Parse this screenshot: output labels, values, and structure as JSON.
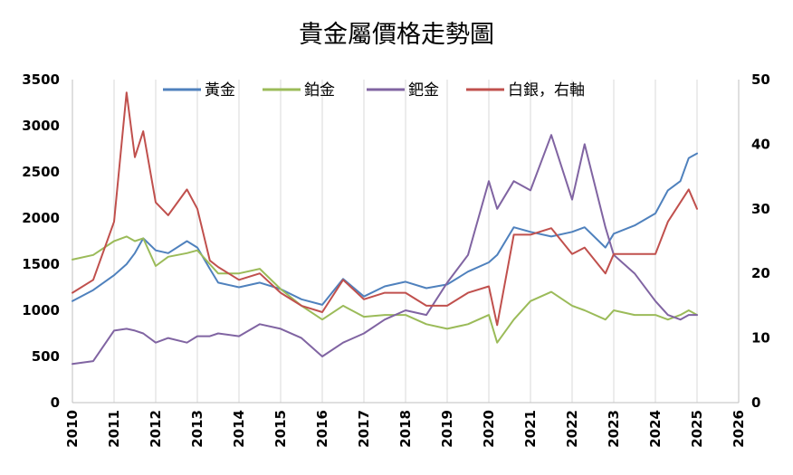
{
  "chart_data": {
    "type": "line",
    "title": "貴金屬價格走勢圖",
    "xlabel": "",
    "ylabel": "",
    "xlim": [
      2010,
      2026
    ],
    "ylim_left": [
      0,
      3500
    ],
    "ylim_right": [
      0,
      50
    ],
    "x_ticks": [
      "2010",
      "2011",
      "2012",
      "2013",
      "2014",
      "2015",
      "2016",
      "2017",
      "2018",
      "2019",
      "2020",
      "2021",
      "2022",
      "2023",
      "2024",
      "2025",
      "2026"
    ],
    "y_ticks_left": [
      "0",
      "500",
      "1000",
      "1500",
      "2000",
      "2500",
      "3000",
      "3500"
    ],
    "y_ticks_right": [
      "0",
      "10",
      "20",
      "30",
      "40",
      "50"
    ],
    "grid": "vertical",
    "legend_position": "top",
    "x": [
      2010.0,
      2010.5,
      2011.0,
      2011.3,
      2011.5,
      2011.7,
      2012.0,
      2012.3,
      2012.75,
      2013.0,
      2013.3,
      2013.5,
      2014.0,
      2014.5,
      2015.0,
      2015.5,
      2016.0,
      2016.5,
      2017.0,
      2017.5,
      2018.0,
      2018.5,
      2019.0,
      2019.5,
      2020.0,
      2020.2,
      2020.6,
      2021.0,
      2021.5,
      2022.0,
      2022.3,
      2022.8,
      2023.0,
      2023.5,
      2024.0,
      2024.3,
      2024.6,
      2024.8,
      2025.0
    ],
    "series": [
      {
        "name": "黃金",
        "axis": "left",
        "color": "#4f81bd",
        "values": [
          1100,
          1220,
          1380,
          1500,
          1620,
          1780,
          1650,
          1620,
          1750,
          1680,
          1450,
          1300,
          1250,
          1300,
          1230,
          1120,
          1060,
          1340,
          1150,
          1260,
          1310,
          1240,
          1280,
          1420,
          1520,
          1600,
          1900,
          1850,
          1800,
          1850,
          1900,
          1680,
          1830,
          1920,
          2050,
          2300,
          2400,
          2650,
          2700
        ]
      },
      {
        "name": "鉑金",
        "axis": "left",
        "color": "#9bbb59",
        "values": [
          1550,
          1600,
          1750,
          1800,
          1750,
          1780,
          1480,
          1580,
          1620,
          1650,
          1500,
          1400,
          1400,
          1450,
          1230,
          1050,
          900,
          1050,
          930,
          950,
          950,
          850,
          800,
          850,
          950,
          650,
          900,
          1100,
          1200,
          1050,
          1000,
          900,
          1000,
          950,
          950,
          900,
          950,
          1000,
          950
        ]
      },
      {
        "name": "鈀金",
        "axis": "left",
        "color": "#8064a2",
        "values": [
          420,
          450,
          780,
          800,
          780,
          750,
          650,
          700,
          650,
          720,
          720,
          750,
          720,
          850,
          800,
          700,
          500,
          650,
          750,
          900,
          1000,
          950,
          1300,
          1600,
          2400,
          2100,
          2400,
          2300,
          2900,
          2200,
          2800,
          1900,
          1600,
          1400,
          1100,
          950,
          900,
          950,
          950
        ]
      },
      {
        "name": "白銀，右軸",
        "axis": "right",
        "color": "#c0504d",
        "values": [
          17,
          19,
          28,
          48,
          38,
          42,
          31,
          29,
          33,
          30,
          22,
          21,
          19,
          20,
          17,
          15,
          14,
          19,
          16,
          17,
          17,
          15,
          15,
          17,
          18,
          12,
          26,
          26,
          27,
          23,
          24,
          20,
          23,
          23,
          23,
          28,
          31,
          33,
          30
        ]
      }
    ]
  }
}
